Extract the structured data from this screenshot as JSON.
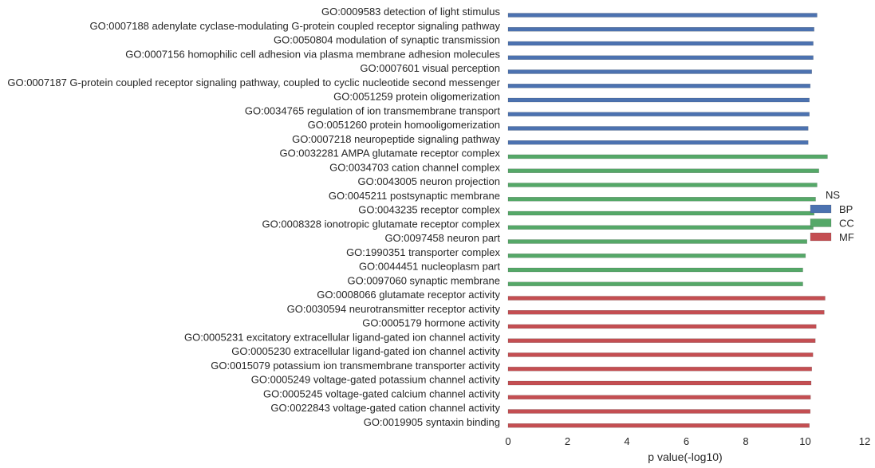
{
  "chart_data": {
    "type": "bar",
    "orientation": "horizontal",
    "xlabel": "p value(-log10)",
    "ylabel": "",
    "xlim": [
      0,
      12
    ],
    "xticks": [
      0,
      2,
      4,
      6,
      8,
      10,
      12
    ],
    "grid": false,
    "legend": {
      "title": "NS",
      "position": "right",
      "entries": [
        {
          "label": "BP",
          "color": "#4c72b0"
        },
        {
          "label": "CC",
          "color": "#55a868"
        },
        {
          "label": "MF",
          "color": "#c44e52"
        }
      ]
    },
    "series": [
      {
        "name": "BP",
        "color": "#4c72b0",
        "categories": [
          "GO:0009583 detection of light stimulus",
          "GO:0007188 adenylate cyclase-modulating G-protein coupled receptor signaling pathway",
          "GO:0050804 modulation of synaptic transmission",
          "GO:0007156 homophilic cell adhesion via plasma membrane adhesion molecules",
          "GO:0007601 visual perception",
          "GO:0007187 G-protein coupled receptor signaling pathway, coupled to cyclic nucleotide second messenger",
          "GO:0051259 protein oligomerization",
          "GO:0034765 regulation of ion transmembrane transport",
          "GO:0051260 protein homooligomerization",
          "GO:0007218 neuropeptide signaling pathway"
        ],
        "values": [
          10.4,
          10.3,
          10.27,
          10.27,
          10.22,
          10.17,
          10.14,
          10.14,
          10.1,
          10.1
        ]
      },
      {
        "name": "CC",
        "color": "#55a868",
        "categories": [
          "GO:0032281 AMPA glutamate receptor complex",
          "GO:0034703 cation channel complex",
          "GO:0043005 neuron projection",
          "GO:0045211 postsynaptic membrane",
          "GO:0043235 receptor complex",
          "GO:0008328 ionotropic glutamate receptor complex",
          "GO:0097458 neuron part",
          "GO:1990351 transporter complex",
          "GO:0044451 nucleoplasm part",
          "GO:0097060 synaptic membrane"
        ],
        "values": [
          10.75,
          10.46,
          10.4,
          10.35,
          10.3,
          10.27,
          10.06,
          10.01,
          9.92,
          9.92
        ]
      },
      {
        "name": "MF",
        "color": "#c44e52",
        "categories": [
          "GO:0008066 glutamate receptor activity",
          "GO:0030594 neurotransmitter receptor activity",
          "GO:0005179 hormone activity",
          "GO:0005231 excitatory extracellular ligand-gated ion channel activity",
          "GO:0005230 extracellular ligand-gated ion channel activity",
          "GO:0015079 potassium ion transmembrane transporter activity",
          "GO:0005249 voltage-gated potassium channel activity",
          "GO:0005245 voltage-gated calcium channel activity",
          "GO:0022843 voltage-gated cation channel activity",
          "GO:0019905 syntaxin binding"
        ],
        "values": [
          10.67,
          10.64,
          10.37,
          10.34,
          10.26,
          10.22,
          10.2,
          10.18,
          10.17,
          10.14
        ]
      }
    ]
  }
}
